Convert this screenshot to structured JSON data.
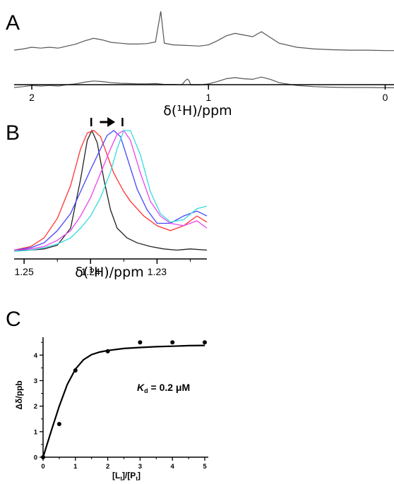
{
  "figure": {
    "panel_a_letter": "A",
    "panel_b_letter": "B",
    "panel_c_letter": "C"
  },
  "chart_data": [
    {
      "panel": "A",
      "type": "line",
      "xlabel": "δ(¹H)/ppm",
      "x_ticks": [
        "2",
        "1",
        "0"
      ],
      "x_reversed": true,
      "xlim": [
        2.1,
        -0.05
      ],
      "series": [
        {
          "color": "#555555",
          "x": [
            2.1,
            2.05,
            2.0,
            1.95,
            1.9,
            1.85,
            1.8,
            1.75,
            1.7,
            1.65,
            1.6,
            1.55,
            1.5,
            1.45,
            1.4,
            1.35,
            1.3,
            1.27,
            1.25,
            1.2,
            1.15,
            1.1,
            1.05,
            1.0,
            0.95,
            0.9,
            0.85,
            0.8,
            0.75,
            0.7,
            0.65,
            0.6,
            0.5,
            0.4,
            0.3,
            0.2,
            0.1,
            0.0,
            -0.05
          ],
          "y": [
            0.05,
            0.08,
            0.12,
            0.1,
            0.12,
            0.1,
            0.15,
            0.2,
            0.28,
            0.34,
            0.3,
            0.24,
            0.22,
            0.2,
            0.2,
            0.21,
            0.25,
            1.0,
            0.22,
            0.18,
            0.17,
            0.16,
            0.15,
            0.18,
            0.28,
            0.4,
            0.46,
            0.42,
            0.38,
            0.5,
            0.36,
            0.22,
            0.12,
            0.08,
            0.06,
            0.05,
            0.05,
            0.04,
            0.04
          ]
        },
        {
          "color": "#555555",
          "x": [
            2.1,
            2.05,
            2.0,
            1.95,
            1.9,
            1.85,
            1.8,
            1.75,
            1.7,
            1.65,
            1.6,
            1.55,
            1.5,
            1.45,
            1.4,
            1.35,
            1.3,
            1.25,
            1.2,
            1.15,
            1.13,
            1.12,
            1.11,
            1.1,
            1.05,
            1.0,
            0.95,
            0.9,
            0.85,
            0.8,
            0.75,
            0.7,
            0.65,
            0.6,
            0.5,
            0.4,
            0.3,
            0.2,
            0.1,
            0.0,
            -0.05
          ],
          "y": [
            -0.35,
            -0.32,
            -0.28,
            -0.3,
            -0.28,
            -0.3,
            -0.25,
            -0.22,
            -0.16,
            -0.12,
            -0.14,
            -0.18,
            -0.2,
            -0.21,
            -0.22,
            -0.22,
            -0.21,
            -0.24,
            -0.24,
            -0.25,
            -0.1,
            -0.05,
            -0.1,
            -0.26,
            -0.26,
            -0.22,
            -0.14,
            -0.04,
            0.0,
            -0.04,
            -0.06,
            0.02,
            -0.06,
            -0.18,
            -0.28,
            -0.32,
            -0.34,
            -0.35,
            -0.35,
            -0.36,
            -0.36
          ]
        }
      ]
    },
    {
      "panel": "B",
      "type": "line",
      "xlabel": "δ(¹H)/ppm",
      "x_ticks": [
        "1.25",
        "1.24",
        "1.23"
      ],
      "x_reversed": true,
      "xlim": [
        1.2515,
        1.2225
      ],
      "ylim": [
        0,
        1.0
      ],
      "series": [
        {
          "color": "#222222",
          "x": [
            1.2515,
            1.249,
            1.247,
            1.245,
            1.243,
            1.2415,
            1.2405,
            1.2398,
            1.239,
            1.238,
            1.237,
            1.236,
            1.2345,
            1.233,
            1.231,
            1.229,
            1.227,
            1.225,
            1.2225
          ],
          "y": [
            0.02,
            0.02,
            0.03,
            0.06,
            0.2,
            0.6,
            0.92,
            1.0,
            0.9,
            0.6,
            0.35,
            0.2,
            0.12,
            0.08,
            0.05,
            0.03,
            0.02,
            0.03,
            0.02
          ]
        },
        {
          "color": "#ff3333",
          "x": [
            1.2515,
            1.249,
            1.247,
            1.245,
            1.243,
            1.2415,
            1.2405,
            1.2395,
            1.2385,
            1.2375,
            1.2365,
            1.235,
            1.234,
            1.232,
            1.23,
            1.228,
            1.226,
            1.224,
            1.2225
          ],
          "y": [
            0.02,
            0.05,
            0.12,
            0.28,
            0.55,
            0.85,
            0.98,
            1.0,
            0.95,
            0.8,
            0.65,
            0.5,
            0.42,
            0.3,
            0.22,
            0.18,
            0.22,
            0.3,
            0.25
          ]
        },
        {
          "color": "#4444ff",
          "x": [
            1.2515,
            1.249,
            1.247,
            1.245,
            1.243,
            1.2415,
            1.24,
            1.2385,
            1.2375,
            1.2365,
            1.2355,
            1.2345,
            1.233,
            1.2315,
            1.23,
            1.228,
            1.226,
            1.224,
            1.2225
          ],
          "y": [
            0.02,
            0.04,
            0.08,
            0.18,
            0.32,
            0.5,
            0.68,
            0.85,
            0.96,
            1.0,
            0.95,
            0.78,
            0.52,
            0.35,
            0.24,
            0.24,
            0.3,
            0.34,
            0.3
          ]
        },
        {
          "color": "#ee44ee",
          "x": [
            1.2515,
            1.249,
            1.247,
            1.245,
            1.243,
            1.2415,
            1.24,
            1.2385,
            1.237,
            1.236,
            1.235,
            1.234,
            1.2325,
            1.231,
            1.2295,
            1.228,
            1.226,
            1.224,
            1.2225
          ],
          "y": [
            0.02,
            0.03,
            0.05,
            0.1,
            0.18,
            0.3,
            0.45,
            0.65,
            0.85,
            0.97,
            1.0,
            0.92,
            0.65,
            0.42,
            0.3,
            0.24,
            0.22,
            0.26,
            0.2
          ]
        },
        {
          "color": "#33dddd",
          "x": [
            1.2515,
            1.249,
            1.247,
            1.245,
            1.243,
            1.2415,
            1.24,
            1.2385,
            1.237,
            1.236,
            1.235,
            1.234,
            1.2325,
            1.231,
            1.2295,
            1.228,
            1.226,
            1.224,
            1.2225
          ],
          "y": [
            0.01,
            0.02,
            0.04,
            0.07,
            0.12,
            0.2,
            0.3,
            0.45,
            0.66,
            0.85,
            1.0,
            1.0,
            0.8,
            0.5,
            0.32,
            0.25,
            0.27,
            0.36,
            0.38
          ]
        }
      ],
      "annotations": [
        {
          "type": "marker",
          "x": 1.2399
        },
        {
          "type": "marker",
          "x": 1.2352
        },
        {
          "type": "arrow",
          "x_from": 1.2386,
          "x_to": 1.2363
        }
      ]
    },
    {
      "panel": "C",
      "type": "scatter",
      "xlabel": "[Lt]/[Pt]",
      "ylabel": "Δδ/ppb",
      "xlim": [
        0,
        5
      ],
      "ylim": [
        0,
        4.7
      ],
      "x_ticks": [
        "0",
        "1",
        "2",
        "3",
        "4",
        "5"
      ],
      "y_ticks": [
        "0",
        "1",
        "2",
        "3",
        "4"
      ],
      "points": {
        "x": [
          0,
          0.5,
          1,
          2,
          3,
          4,
          5
        ],
        "y": [
          0,
          1.3,
          3.4,
          4.15,
          4.5,
          4.5,
          4.5
        ]
      },
      "fit": {
        "x": [
          0,
          0.25,
          0.5,
          0.75,
          1.0,
          1.25,
          1.5,
          1.75,
          2.0,
          2.5,
          3.0,
          3.5,
          4.0,
          4.5,
          5.0
        ],
        "y": [
          0,
          1.02,
          2.0,
          2.85,
          3.45,
          3.82,
          4.02,
          4.12,
          4.18,
          4.26,
          4.3,
          4.33,
          4.35,
          4.37,
          4.38
        ]
      },
      "annotation": {
        "symbol": "K",
        "subscript": "d",
        "text": " = 0.2 μM"
      }
    }
  ]
}
